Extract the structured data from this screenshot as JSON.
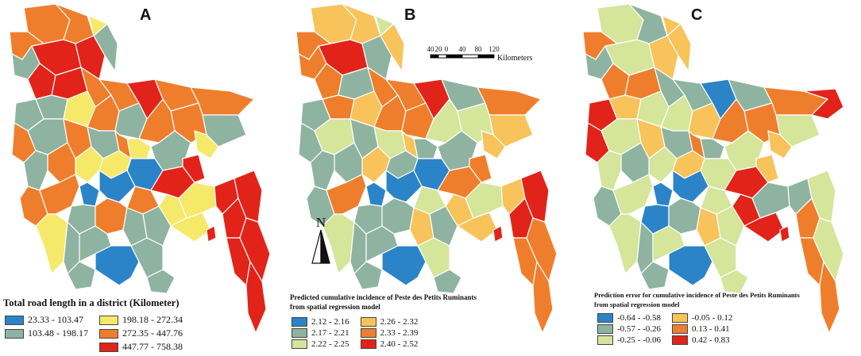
{
  "colors": {
    "blue": "#2b84c8",
    "green": "#8fb3a1",
    "lightgreen": "#d5e59a",
    "yellow": "#f6e96a",
    "lightorange": "#f7c35a",
    "orange": "#ef7e2c",
    "red": "#e2231a"
  },
  "panels": [
    {
      "letter": "A",
      "legend_title": "Total road length in a district (Kilometer)",
      "legend_subtitle": "",
      "legend": [
        {
          "label": "23.33 - 103.47",
          "color": "#2b84c8"
        },
        {
          "label": "198.18 - 272.34",
          "color": "#f6e96a"
        },
        {
          "label": "103.48 - 198.17",
          "color": "#8fb3a1"
        },
        {
          "label": "272.35 - 447.76",
          "color": "#ef7e2c"
        },
        {
          "label": "",
          "color": ""
        },
        {
          "label": "447.77 - 758.38",
          "color": "#e2231a"
        }
      ]
    },
    {
      "letter": "B",
      "legend_title": "Predicted cumulative incidence of Peste des Petits Ruminants",
      "legend_subtitle": "from spatial regression model",
      "legend": [
        {
          "label": "2.12 - 2.16",
          "color": "#2b84c8"
        },
        {
          "label": "2.26 - 2.32",
          "color": "#f7c35a"
        },
        {
          "label": "2.17 - 2.21",
          "color": "#8fb3a1"
        },
        {
          "label": "2.33 - 2.39",
          "color": "#ef7e2c"
        },
        {
          "label": "2.22 - 2.25",
          "color": "#d5e59a"
        },
        {
          "label": "2.40 - 2.52",
          "color": "#e2231a"
        }
      ]
    },
    {
      "letter": "C",
      "legend_title": "Prediction error for cumulative incidence of Peste des Petits Ruminants",
      "legend_subtitle": "from spatial regression model",
      "legend": [
        {
          "label": "-0.64 - -0.58",
          "color": "#2b84c8"
        },
        {
          "label": "-0.05 - 0.12",
          "color": "#f7c35a"
        },
        {
          "label": "-0.57 - -0.26",
          "color": "#8fb3a1"
        },
        {
          "label": "0.13 - 0.41",
          "color": "#ef7e2c"
        },
        {
          "label": "-0.25 - -0.06",
          "color": "#d5e59a"
        },
        {
          "label": "0.42 - 0.83",
          "color": "#e2231a"
        }
      ]
    }
  ],
  "scale_bar": {
    "ticks": [
      "40",
      "20",
      "0",
      "40",
      "80",
      "120"
    ],
    "unit": "Kilometers"
  },
  "north_label": "N"
}
